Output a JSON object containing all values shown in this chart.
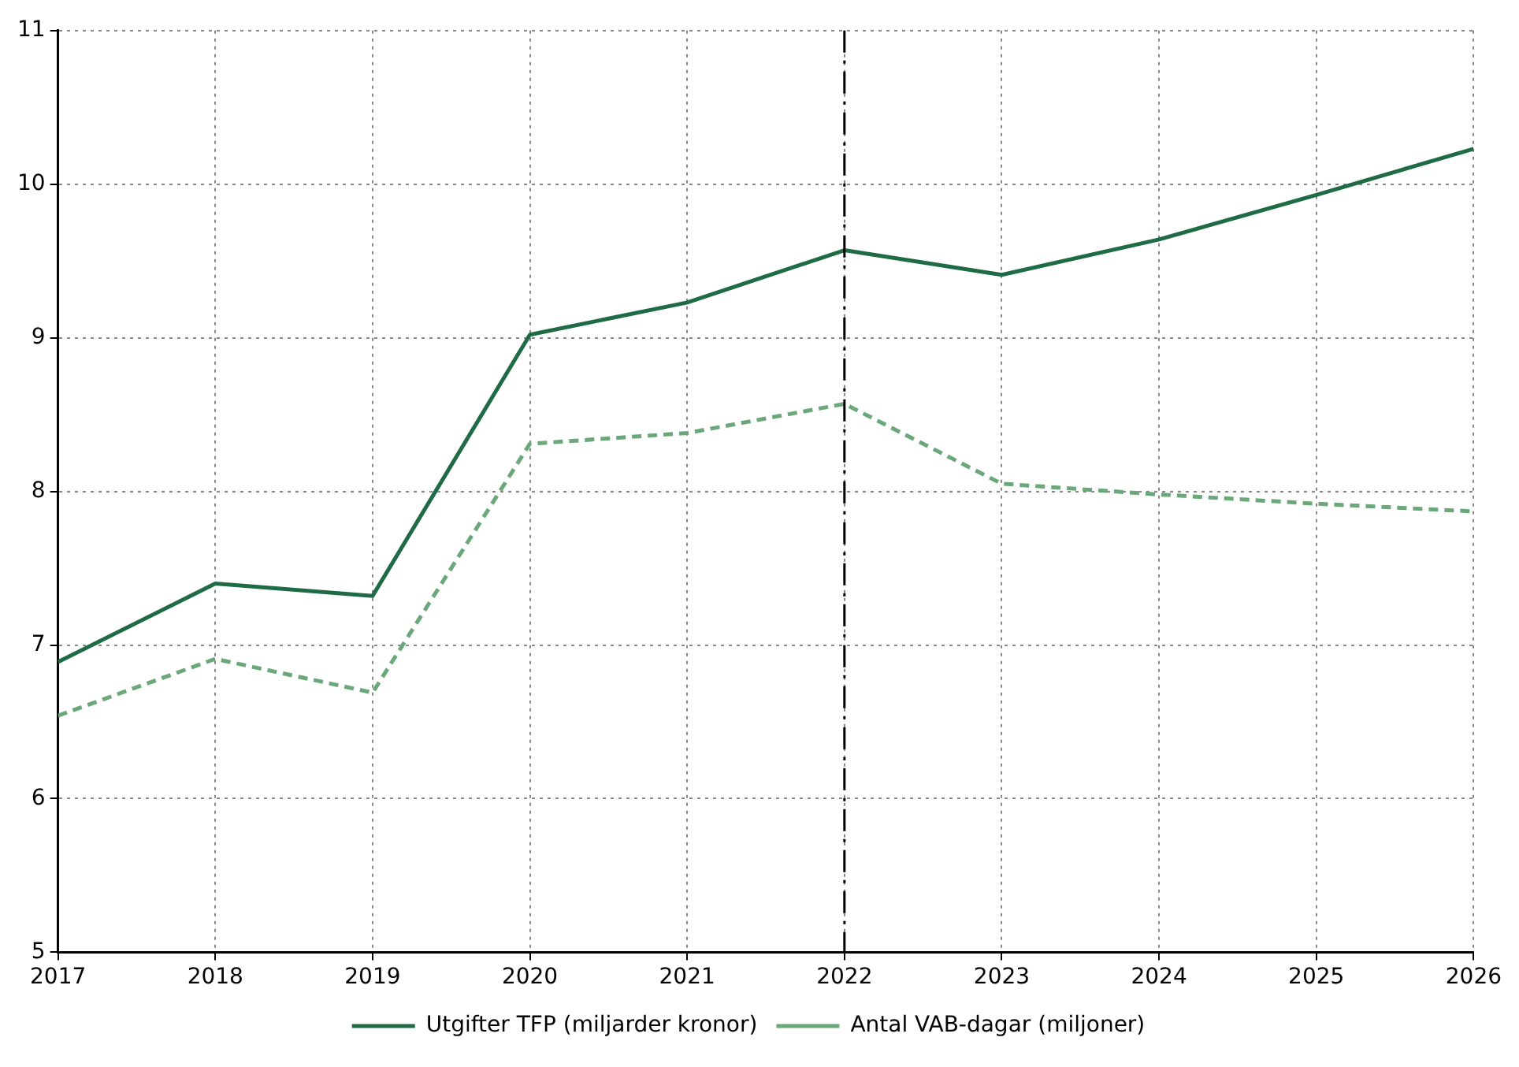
{
  "chart_data": {
    "type": "line",
    "x": [
      2017,
      2018,
      2019,
      2020,
      2021,
      2022,
      2023,
      2024,
      2025,
      2026
    ],
    "series": [
      {
        "name": "Utgifter TFP (miljarder kronor)",
        "color": "#1e6b45",
        "line_style": "solid",
        "values": [
          6.89,
          7.4,
          7.32,
          9.02,
          9.23,
          9.57,
          9.41,
          9.64,
          9.93,
          10.23
        ]
      },
      {
        "name": "Antal VAB-dagar (miljoner)",
        "color": "#6aa87a",
        "line_style": "dashed",
        "values": [
          6.54,
          6.91,
          6.69,
          8.31,
          8.38,
          8.57,
          8.05,
          7.98,
          7.92,
          7.87
        ]
      }
    ],
    "xlim": [
      2017,
      2026
    ],
    "xticks": [
      2017,
      2018,
      2019,
      2020,
      2021,
      2022,
      2023,
      2024,
      2025,
      2026
    ],
    "ylim": [
      5,
      11
    ],
    "yticks": [
      5,
      6,
      7,
      8,
      9,
      10,
      11
    ],
    "grid": true,
    "legend": "bottom",
    "marker": "none",
    "ref_lines": [
      {
        "axis": "x",
        "value": 2022,
        "color": "#000000",
        "line_style": "dashed"
      }
    ]
  }
}
